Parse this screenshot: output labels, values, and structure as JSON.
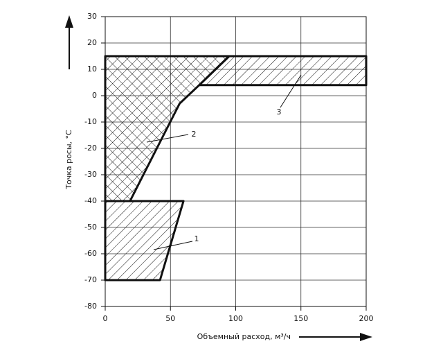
{
  "chart_data": {
    "type": "polygon",
    "ylabel": "Точка росы, °C",
    "xlabel": "Объемный расход, м³/ч",
    "xlim": [
      0,
      200
    ],
    "xticks": [
      0,
      50,
      100,
      150,
      200
    ],
    "ylim": [
      -80,
      30
    ],
    "yticks": [
      -80,
      -70,
      -60,
      -50,
      -40,
      -30,
      -20,
      -10,
      0,
      10,
      20,
      30
    ],
    "grid": true,
    "color": "#111111",
    "series": [
      {
        "name": "1",
        "hatch": "single",
        "x": [
          0,
          60,
          42,
          0
        ],
        "values": [
          -40,
          -40,
          -70,
          -70
        ]
      },
      {
        "name": "2",
        "hatch": "cross",
        "x": [
          0,
          95,
          72,
          57,
          19,
          0
        ],
        "values": [
          15,
          15,
          4,
          -3,
          -40,
          -40
        ]
      },
      {
        "name": "3",
        "hatch": "single",
        "x": [
          95,
          200,
          200,
          72
        ],
        "values": [
          15,
          15,
          4,
          4
        ]
      }
    ]
  }
}
